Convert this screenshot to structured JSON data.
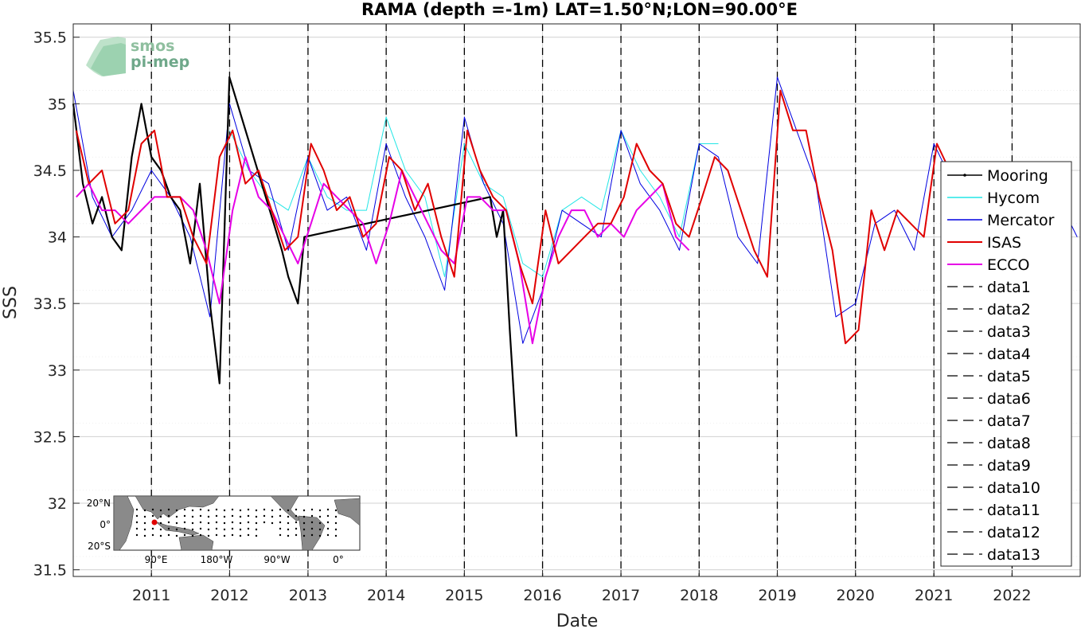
{
  "chart_data": {
    "type": "line",
    "title": "RAMA (depth =-1m) LAT=1.50°N;LON=90.00°E",
    "xlabel": "Date",
    "ylabel": "SSS",
    "xlim": [
      "2010-01-01",
      "2022-11-15"
    ],
    "ylim": [
      31.45,
      35.6
    ],
    "yticks": [
      31.5,
      32,
      32.5,
      33,
      33.5,
      34,
      34.5,
      35,
      35.5
    ],
    "yticklabels": [
      "31.5",
      "32",
      "32.5",
      "33",
      "33.5",
      "34",
      "34.5",
      "35",
      "35.5"
    ],
    "xticks": [
      "2011-01-01",
      "2012-01-01",
      "2013-01-01",
      "2014-01-01",
      "2015-01-01",
      "2016-01-01",
      "2017-01-01",
      "2018-01-01",
      "2019-01-01",
      "2020-01-01",
      "2021-01-01",
      "2022-01-01"
    ],
    "xticklabels": [
      "2011",
      "2012",
      "2013",
      "2014",
      "2015",
      "2016",
      "2017",
      "2018",
      "2019",
      "2020",
      "2021",
      "2022"
    ],
    "grid": true,
    "legend_position": "right",
    "colors": {
      "Mooring": "#000000",
      "Hycom": "#22e6e6",
      "Mercator": "#0000e0",
      "ISAS": "#e00000",
      "ECCO": "#e600e6",
      "vlines": "#000000"
    },
    "series": [
      {
        "name": "Mooring",
        "x": [
          "2010-01-01",
          "2010-02-15",
          "2010-04-01",
          "2010-05-15",
          "2010-07-01",
          "2010-08-15",
          "2010-10-01",
          "2010-11-15",
          "2011-01-01",
          "2011-02-15",
          "2011-04-01",
          "2011-05-15",
          "2011-07-01",
          "2011-08-15",
          "2011-10-01",
          "2011-11-15",
          "2011-12-31",
          "2012-09-01",
          "2012-10-01",
          "2012-11-15",
          "2012-12-15",
          "2015-05-01",
          "2015-06-01",
          "2015-07-01",
          "2015-08-01",
          "2015-09-01"
        ],
        "y": [
          35.0,
          34.4,
          34.1,
          34.3,
          34.0,
          33.9,
          34.6,
          35.0,
          34.6,
          34.5,
          34.3,
          34.2,
          33.8,
          34.4,
          33.5,
          32.9,
          35.2,
          33.9,
          33.7,
          33.5,
          34.0,
          34.3,
          34.0,
          34.2,
          33.3,
          32.5
        ]
      },
      {
        "name": "Hycom",
        "x": [
          "2012-01-01",
          "2012-04-01",
          "2012-07-01",
          "2012-10-01",
          "2013-01-01",
          "2013-04-01",
          "2013-07-01",
          "2013-10-01",
          "2014-01-01",
          "2014-04-01",
          "2014-07-01",
          "2014-10-01",
          "2015-01-01",
          "2015-04-01",
          "2015-07-01",
          "2015-10-01",
          "2016-01-01",
          "2016-04-01",
          "2016-07-01",
          "2016-10-01",
          "2017-01-01",
          "2017-04-01",
          "2017-07-01",
          "2017-10-01",
          "2018-01-01",
          "2018-04-01"
        ],
        "y": [
          34.8,
          34.5,
          34.3,
          34.2,
          34.6,
          34.3,
          34.2,
          34.2,
          34.9,
          34.5,
          34.3,
          33.7,
          34.7,
          34.4,
          34.3,
          33.8,
          33.7,
          34.2,
          34.3,
          34.2,
          34.8,
          34.5,
          34.3,
          34.0,
          34.7,
          34.7
        ]
      },
      {
        "name": "Mercator",
        "x": [
          "2010-01-01",
          "2010-04-01",
          "2010-07-01",
          "2010-10-01",
          "2011-01-01",
          "2011-04-01",
          "2011-07-01",
          "2011-10-01",
          "2012-01-01",
          "2012-04-01",
          "2012-07-01",
          "2012-10-01",
          "2013-01-01",
          "2013-04-01",
          "2013-07-01",
          "2013-10-01",
          "2014-01-01",
          "2014-04-01",
          "2014-07-01",
          "2014-10-01",
          "2015-01-01",
          "2015-04-01",
          "2015-07-01",
          "2015-10-01",
          "2016-01-01",
          "2016-04-01",
          "2016-07-01",
          "2016-10-01",
          "2017-01-01",
          "2017-04-01",
          "2017-07-01",
          "2017-10-01",
          "2018-01-01",
          "2018-04-01",
          "2018-07-01",
          "2018-10-01",
          "2019-01-01",
          "2019-04-01",
          "2019-07-01",
          "2019-10-01",
          "2020-01-01",
          "2020-04-01",
          "2020-07-01",
          "2020-10-01",
          "2021-01-01",
          "2021-04-01",
          "2021-07-01",
          "2021-10-01",
          "2022-01-01",
          "2022-04-01",
          "2022-07-01",
          "2022-11-01"
        ],
        "y": [
          35.1,
          34.3,
          34.0,
          34.2,
          34.5,
          34.3,
          34.0,
          33.4,
          35.0,
          34.5,
          34.4,
          33.9,
          34.6,
          34.2,
          34.3,
          33.9,
          34.7,
          34.3,
          34.0,
          33.6,
          34.9,
          34.4,
          34.1,
          33.2,
          33.6,
          34.2,
          34.1,
          34.0,
          34.8,
          34.4,
          34.2,
          33.9,
          34.7,
          34.6,
          34.0,
          33.8,
          35.2,
          34.8,
          34.4,
          33.4,
          33.5,
          34.1,
          34.2,
          33.9,
          34.7,
          34.4,
          34.4,
          34.3,
          34.5,
          34.5,
          34.4,
          34.0
        ]
      },
      {
        "name": "ISAS",
        "x": [
          "2010-01-15",
          "2010-03-15",
          "2010-05-15",
          "2010-07-15",
          "2010-09-15",
          "2010-11-15",
          "2011-01-15",
          "2011-03-15",
          "2011-05-15",
          "2011-07-15",
          "2011-09-15",
          "2011-11-15",
          "2012-01-15",
          "2012-03-15",
          "2012-05-15",
          "2012-07-15",
          "2012-09-15",
          "2012-11-15",
          "2013-01-15",
          "2013-03-15",
          "2013-05-15",
          "2013-07-15",
          "2013-09-15",
          "2013-11-15",
          "2014-01-15",
          "2014-03-15",
          "2014-05-15",
          "2014-07-15",
          "2014-09-15",
          "2014-11-15",
          "2015-01-15",
          "2015-03-15",
          "2015-05-15",
          "2015-07-15",
          "2015-09-15",
          "2015-11-15",
          "2016-01-15",
          "2016-03-15",
          "2016-05-15",
          "2016-07-15",
          "2016-09-15",
          "2016-11-15",
          "2017-01-15",
          "2017-03-15",
          "2017-05-15",
          "2017-07-15",
          "2017-09-15",
          "2017-11-15",
          "2018-01-15",
          "2018-03-15",
          "2018-05-15",
          "2018-07-15",
          "2018-09-15",
          "2018-11-15",
          "2019-01-15",
          "2019-03-15",
          "2019-05-15",
          "2019-07-15",
          "2019-09-15",
          "2019-11-15",
          "2020-01-15",
          "2020-03-15",
          "2020-05-15",
          "2020-07-15",
          "2020-09-15",
          "2020-11-15",
          "2021-01-15",
          "2021-03-15"
        ],
        "y": [
          34.8,
          34.4,
          34.5,
          34.1,
          34.2,
          34.7,
          34.8,
          34.3,
          34.3,
          34.0,
          33.8,
          34.6,
          34.8,
          34.4,
          34.5,
          34.2,
          33.9,
          34.0,
          34.7,
          34.5,
          34.2,
          34.3,
          34.0,
          34.1,
          34.6,
          34.5,
          34.2,
          34.4,
          34.0,
          33.7,
          34.8,
          34.5,
          34.3,
          34.2,
          33.8,
          33.5,
          34.2,
          33.8,
          33.9,
          34.0,
          34.1,
          34.1,
          34.3,
          34.7,
          34.5,
          34.4,
          34.1,
          34.0,
          34.3,
          34.6,
          34.5,
          34.2,
          33.9,
          33.7,
          35.1,
          34.8,
          34.8,
          34.3,
          33.9,
          33.2,
          33.3,
          34.2,
          33.9,
          34.2,
          34.1,
          34.0,
          34.7,
          34.5
        ]
      },
      {
        "name": "ECCO",
        "x": [
          "2010-01-15",
          "2010-03-15",
          "2010-05-15",
          "2010-07-15",
          "2010-09-15",
          "2010-11-15",
          "2011-01-15",
          "2011-03-15",
          "2011-05-15",
          "2011-07-15",
          "2011-09-15",
          "2011-11-15",
          "2012-01-15",
          "2012-03-15",
          "2012-05-15",
          "2012-07-15",
          "2012-09-15",
          "2012-11-15",
          "2013-01-15",
          "2013-03-15",
          "2013-05-15",
          "2013-07-15",
          "2013-09-15",
          "2013-11-15",
          "2014-01-15",
          "2014-03-15",
          "2014-05-15",
          "2014-07-15",
          "2014-09-15",
          "2014-11-15",
          "2015-01-15",
          "2015-03-15",
          "2015-05-15",
          "2015-07-15",
          "2015-09-15",
          "2015-11-15",
          "2016-01-15",
          "2016-03-15",
          "2016-05-15",
          "2016-07-15",
          "2016-09-15",
          "2016-11-15",
          "2017-01-15",
          "2017-03-15",
          "2017-05-15",
          "2017-07-15",
          "2017-09-15",
          "2017-11-15"
        ],
        "y": [
          34.3,
          34.4,
          34.2,
          34.2,
          34.1,
          34.2,
          34.3,
          34.3,
          34.3,
          34.2,
          33.9,
          33.5,
          34.2,
          34.6,
          34.3,
          34.2,
          34.0,
          33.8,
          34.1,
          34.4,
          34.3,
          34.2,
          34.1,
          33.8,
          34.1,
          34.5,
          34.3,
          34.1,
          33.9,
          33.8,
          34.3,
          34.3,
          34.2,
          34.2,
          33.8,
          33.2,
          33.7,
          34.0,
          34.2,
          34.2,
          34.0,
          34.1,
          34.0,
          34.2,
          34.3,
          34.4,
          34.0,
          33.9
        ]
      }
    ],
    "vlines_x": [
      "2011-01-01",
      "2012-01-01",
      "2013-01-01",
      "2014-01-01",
      "2015-01-01",
      "2016-01-01",
      "2017-01-01",
      "2018-01-01",
      "2019-01-01",
      "2020-01-01",
      "2021-01-01",
      "2022-01-01"
    ],
    "legend": [
      "Mooring",
      "Hycom",
      "Mercator",
      "ISAS",
      "ECCO",
      "data1",
      "data2",
      "data3",
      "data4",
      "data5",
      "data6",
      "data7",
      "data8",
      "data9",
      "data10",
      "data11",
      "data12",
      "data13"
    ],
    "inset_map": {
      "lat_labels": [
        "20°N",
        "0°",
        "20°S"
      ],
      "lon_labels": [
        "90°E",
        "180°W",
        "90°W",
        "0°"
      ]
    },
    "logo": [
      "smos",
      "pi-mep"
    ]
  }
}
